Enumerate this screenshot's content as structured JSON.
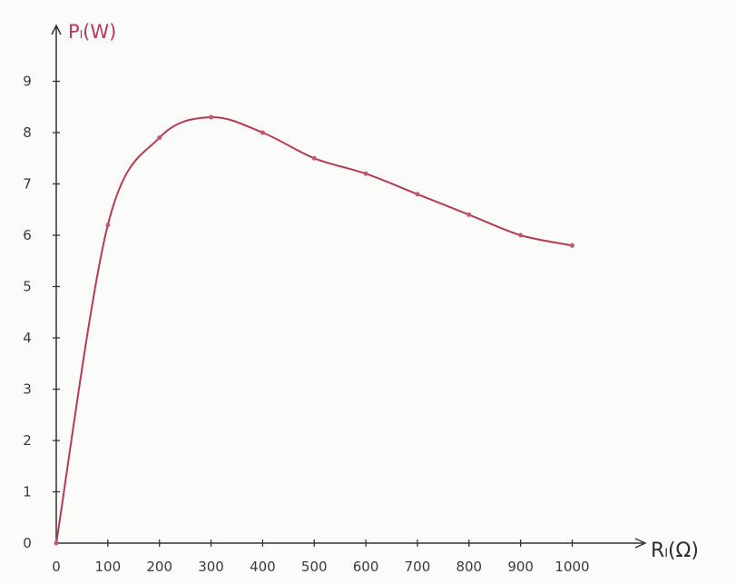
{
  "chart_data": {
    "type": "line",
    "title": "",
    "ylabel": "Pₗ(W)",
    "xlabel": "Rₗ(Ω)",
    "x_ticks": [
      "0",
      "100",
      "200",
      "300",
      "400",
      "500",
      "600",
      "700",
      "800",
      "900",
      "1000"
    ],
    "y_ticks": [
      "0",
      "1",
      "2",
      "3",
      "4",
      "5",
      "6",
      "7",
      "8",
      "9"
    ],
    "xlim": [
      0,
      1000
    ],
    "ylim": [
      0,
      9
    ],
    "grid": false,
    "legend": "none",
    "series": [
      {
        "x": [
          0,
          100,
          200,
          300,
          400,
          500,
          600,
          700,
          800,
          900,
          1000
        ],
        "y": [
          0,
          6.2,
          7.9,
          8.3,
          8.0,
          7.5,
          7.2,
          6.8,
          6.4,
          6.0,
          5.8
        ]
      }
    ],
    "colors": {
      "curve": "#b53b54",
      "points": "#c6566b",
      "axis": "#333333",
      "ylabel": "#b8385a"
    }
  }
}
